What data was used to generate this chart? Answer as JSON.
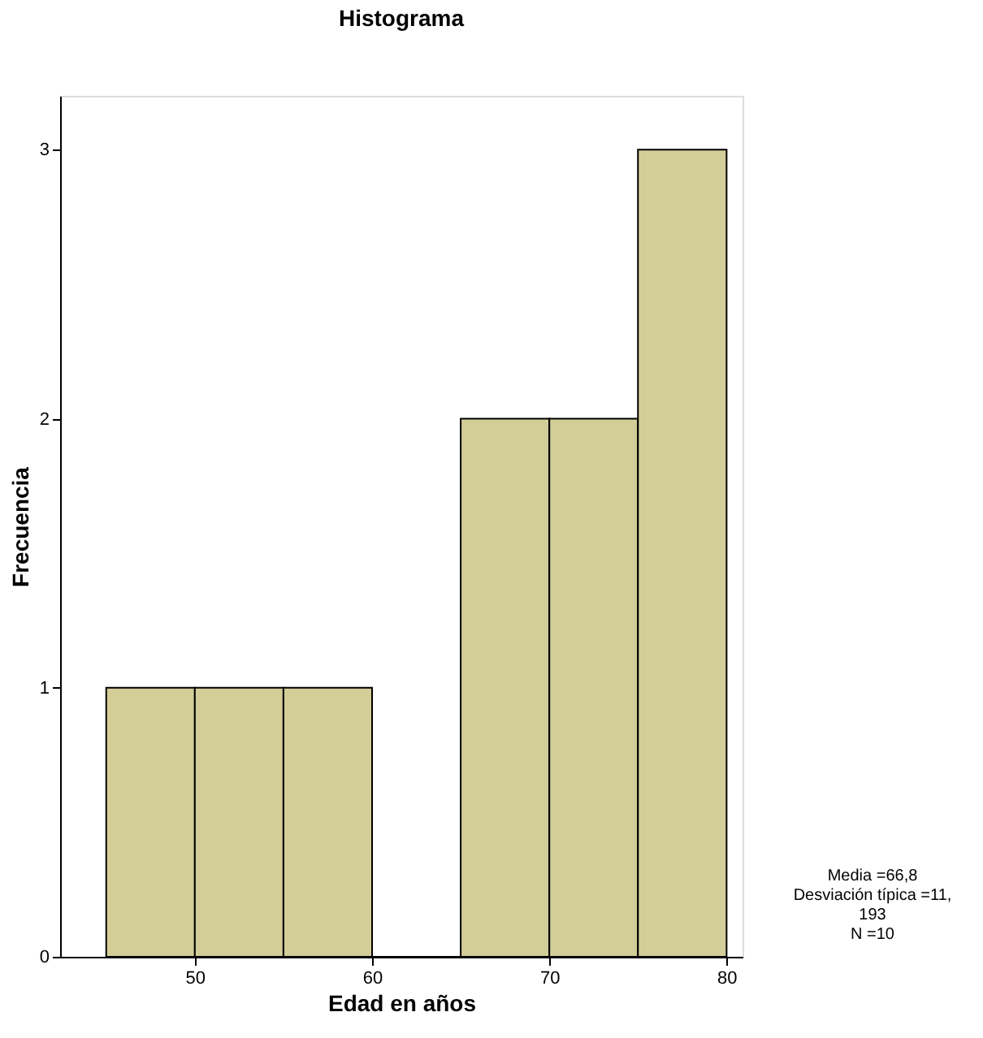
{
  "chart_data": {
    "type": "histogram",
    "title": "Histograma",
    "xlabel": "Edad en años",
    "ylabel": "Frecuencia",
    "bins": [
      45,
      50,
      55,
      60,
      65,
      70,
      75,
      80
    ],
    "values": [
      1,
      1,
      1,
      0,
      2,
      2,
      3
    ],
    "color": "#d3cd98",
    "xlim": [
      42.4,
      80.9
    ],
    "xticks": [
      50,
      60,
      70,
      80
    ],
    "ylim": [
      0,
      3.2
    ],
    "yticks": [
      0,
      1,
      2,
      3
    ],
    "grid": false,
    "annotations": [
      "Media =66,8\nDesviación típica =11,\n193\nN =10"
    ]
  }
}
